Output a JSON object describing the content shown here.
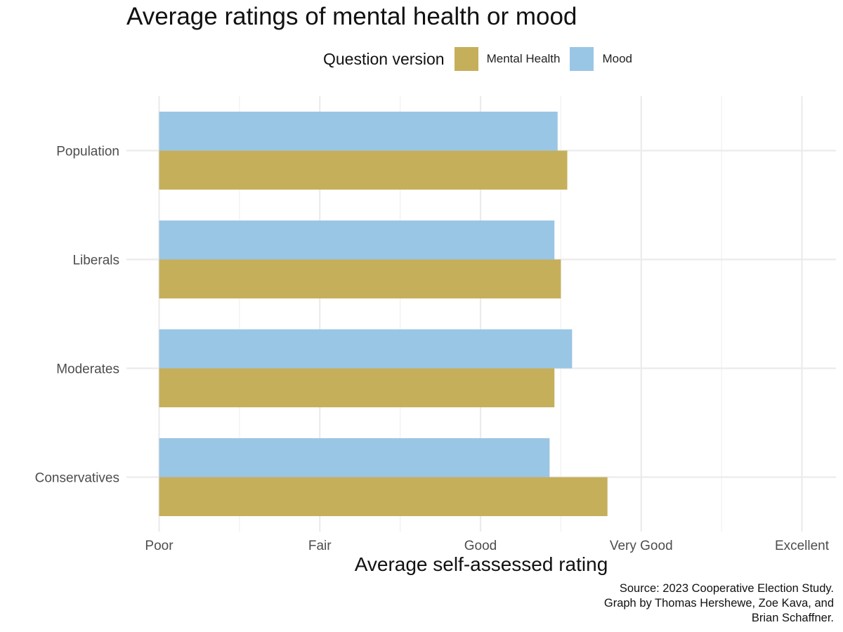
{
  "chart_data": {
    "type": "bar",
    "orientation": "horizontal",
    "title": "Average ratings of mental health or mood",
    "xlabel": "Average self-assessed rating",
    "ylabel": "",
    "categories": [
      "Population",
      "Liberals",
      "Moderates",
      "Conservatives"
    ],
    "series": [
      {
        "name": "Mental Health",
        "color": "#C6AF5B",
        "values": [
          3.54,
          3.5,
          3.46,
          3.79
        ]
      },
      {
        "name": "Mood",
        "color": "#9AC6E5",
        "values": [
          3.48,
          3.46,
          3.57,
          3.43
        ]
      }
    ],
    "xlim": [
      1,
      5
    ],
    "xticks": [
      {
        "value": 1,
        "label": "Poor"
      },
      {
        "value": 2,
        "label": "Fair"
      },
      {
        "value": 3,
        "label": "Good"
      },
      {
        "value": 4,
        "label": "Very Good"
      },
      {
        "value": 5,
        "label": "Excellent"
      }
    ],
    "legend": {
      "title": "Question version",
      "position": "top"
    },
    "grid": true,
    "caption": [
      "Source: 2023 Cooperative Election Study.",
      "Graph by Thomas Hershewe, Zoe Kava, and",
      "Brian Schaffner."
    ]
  }
}
